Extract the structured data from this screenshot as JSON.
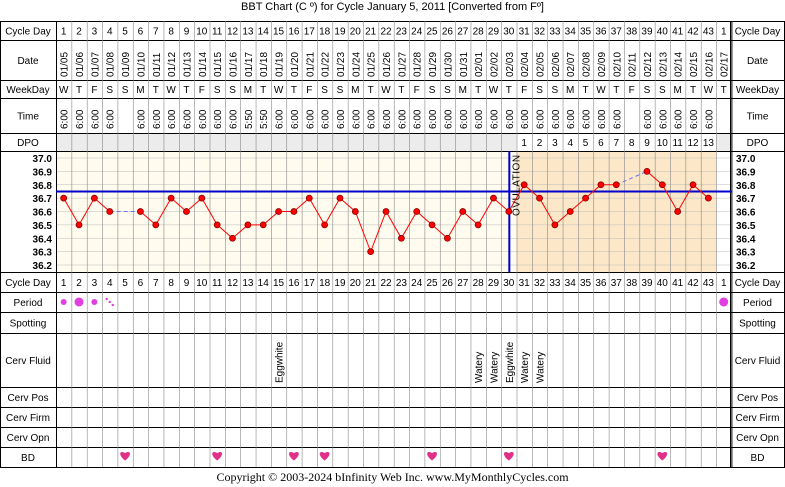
{
  "title": "BBT Chart (C º) for Cycle January 5, 2011  [Converted from Fº]",
  "footer": "Copyright © 2003-2024 bInfinity Web Inc.    www.MyMonthlyCycles.com",
  "row_labels": [
    "Cycle Day",
    "Date",
    "WeekDay",
    "Time",
    "DPO",
    "Cycle Day",
    "Period",
    "Spotting",
    "Cerv Fluid",
    "Cerv Pos",
    "Cerv Firm",
    "Cerv Opn",
    "BD"
  ],
  "colors": {
    "line": "#ff0000",
    "point_fill": "#ff0000",
    "point_stroke": "#800000",
    "coverline": "#0000cc",
    "ovulation_line": "#0000cc",
    "luteal_bg": "#fce8c8",
    "follicular_bg": "#fffbee",
    "header_bg": "#ffffff",
    "heart": "#e0308a",
    "period": "#e040e0",
    "interpolation": "#7070f0"
  },
  "chart_data": {
    "type": "line",
    "title": "BBT Chart (C º) for Cycle January 5, 2011  [Converted from Fº]",
    "x": [
      "1",
      "2",
      "3",
      "4",
      "5",
      "6",
      "7",
      "8",
      "9",
      "10",
      "11",
      "12",
      "13",
      "14",
      "15",
      "16",
      "17",
      "18",
      "19",
      "20",
      "21",
      "22",
      "23",
      "24",
      "25",
      "26",
      "27",
      "28",
      "29",
      "30",
      "31",
      "32",
      "33",
      "34",
      "35",
      "36",
      "37",
      "38",
      "39",
      "40",
      "41",
      "42",
      "43",
      "1"
    ],
    "dates": [
      "01/05",
      "01/06",
      "01/07",
      "01/08",
      "01/09",
      "01/10",
      "01/11",
      "01/12",
      "01/13",
      "01/14",
      "01/15",
      "01/16",
      "01/17",
      "01/18",
      "01/19",
      "01/20",
      "01/21",
      "01/22",
      "01/23",
      "01/24",
      "01/25",
      "01/26",
      "01/27",
      "01/28",
      "01/29",
      "01/30",
      "01/31",
      "02/01",
      "02/02",
      "02/03",
      "02/04",
      "02/05",
      "02/06",
      "02/07",
      "02/08",
      "02/09",
      "02/10",
      "02/11",
      "02/12",
      "02/13",
      "02/14",
      "02/15",
      "02/16",
      "02/17"
    ],
    "weekdays": [
      "W",
      "T",
      "F",
      "S",
      "S",
      "M",
      "T",
      "W",
      "T",
      "F",
      "S",
      "S",
      "M",
      "T",
      "W",
      "T",
      "F",
      "S",
      "S",
      "M",
      "T",
      "W",
      "T",
      "F",
      "S",
      "S",
      "M",
      "T",
      "W",
      "T",
      "F",
      "S",
      "S",
      "M",
      "T",
      "W",
      "T",
      "F",
      "S",
      "S",
      "M",
      "T",
      "W",
      "T"
    ],
    "times": [
      "6:00",
      "6:00",
      "6:00",
      "6:00",
      "",
      "6:00",
      "6:00",
      "6:00",
      "6:00",
      "6:00",
      "6:00",
      "6:00",
      "5:50",
      "5:50",
      "6:00",
      "6:00",
      "6:00",
      "6:00",
      "6:00",
      "6:00",
      "6:00",
      "6:00",
      "6:00",
      "6:00",
      "6:00",
      "6:00",
      "6:00",
      "6:00",
      "6:00",
      "6:00",
      "6:00",
      "6:00",
      "6:00",
      "6:00",
      "6:00",
      "6:00",
      "6:00",
      "",
      "6:00",
      "6:00",
      "6:00",
      "6:00",
      "6:00",
      ""
    ],
    "dpo": [
      "",
      "",
      "",
      "",
      "",
      "",
      "",
      "",
      "",
      "",
      "",
      "",
      "",
      "",
      "",
      "",
      "",
      "",
      "",
      "",
      "",
      "",
      "",
      "",
      "",
      "",
      "",
      "",
      "",
      "",
      "1",
      "2",
      "3",
      "4",
      "5",
      "6",
      "7",
      "8",
      "9",
      "10",
      "11",
      "12",
      "13",
      ""
    ],
    "temps": [
      36.7,
      36.5,
      36.7,
      36.6,
      null,
      36.6,
      36.5,
      36.7,
      36.6,
      36.7,
      36.5,
      36.4,
      36.5,
      36.5,
      36.6,
      36.6,
      36.7,
      36.5,
      36.7,
      36.6,
      36.3,
      36.6,
      36.4,
      36.6,
      36.5,
      36.4,
      36.6,
      36.5,
      36.7,
      36.6,
      36.8,
      36.7,
      36.5,
      36.6,
      36.7,
      36.8,
      36.8,
      null,
      36.9,
      36.8,
      36.6,
      36.8,
      36.7,
      null
    ],
    "y_ticks": [
      "37.0",
      "36.9",
      "36.8",
      "36.7",
      "36.6",
      "36.5",
      "36.4",
      "36.3",
      "36.2"
    ],
    "ylim": [
      36.2,
      37.0
    ],
    "coverline": 36.75,
    "ovulation_day": 30,
    "ovulation_label": "OVULATION",
    "grid": true,
    "period": [
      {
        "day": 1,
        "level": "medium"
      },
      {
        "day": 2,
        "level": "heavy"
      },
      {
        "day": 3,
        "level": "medium"
      },
      {
        "day": 4,
        "level": "spotting"
      },
      {
        "day": 44,
        "level": "heavy"
      }
    ],
    "cervical_fluid": [
      {
        "day": 15,
        "text": "Eggwhite"
      },
      {
        "day": 28,
        "text": "Watery"
      },
      {
        "day": 29,
        "text": "Watery"
      },
      {
        "day": 30,
        "text": "Eggwhite"
      },
      {
        "day": 31,
        "text": "Watery"
      },
      {
        "day": 32,
        "text": "Watery"
      }
    ],
    "bd_days": [
      5,
      11,
      16,
      18,
      25,
      30,
      40
    ]
  }
}
